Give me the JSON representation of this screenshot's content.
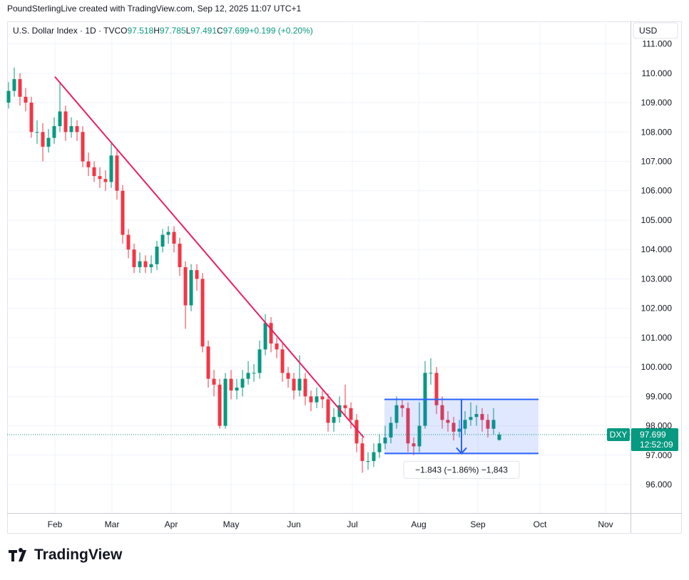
{
  "header": "PoundSterlingLive created with TradingView.com, Sep 12, 2025 11:07 UTC+1",
  "footer": {
    "logo": "TradingView"
  },
  "chart_data": {
    "type": "candlestick",
    "legend": {
      "symbol": "U.S. Dollar Index · 1D · TVC",
      "o": "O",
      "open": "97.518",
      "h": "H",
      "high": "97.785",
      "l": "L",
      "low": "97.491",
      "c": "C",
      "close": "97.699",
      "change": "+0.199 (+0.20%)"
    },
    "currency": "USD",
    "ticker": "DXY",
    "last_price": "97.699",
    "countdown": "12:52:09",
    "up_color": "#089981",
    "down_color": "#f23645",
    "x": [
      0.5,
      2.5,
      4.5,
      6.5,
      8.5,
      10.5,
      12.5,
      14.5,
      16.5,
      18.5,
      20.5,
      22.5,
      24.5,
      26.5,
      28.5,
      30.5,
      32.5,
      34.5,
      36.5,
      38.5,
      40.5,
      42.5,
      44.5,
      46.5,
      48.5,
      50.5,
      52.5,
      54.5,
      56.5,
      58.5,
      60.5,
      62.5,
      64.5,
      66.5,
      68.5,
      70.5,
      72.5,
      74.5,
      76.5,
      78.5,
      80.5,
      82.5,
      84.5,
      86.5,
      88.5,
      90.5,
      92.5,
      94.5,
      96.5,
      98.5,
      100.5,
      102.5,
      104.5,
      106.5,
      108.5,
      110.5,
      112.5,
      114.5,
      116.5,
      118.5,
      120.5,
      122.5,
      124.5,
      126.5,
      128.5,
      130.5,
      132.5,
      134.5,
      136.5,
      138.5,
      140.5,
      142.5,
      144.5,
      146.5,
      148.5,
      150.5,
      152.5,
      154.5,
      156.5,
      158.5,
      160.5,
      162.5,
      164.5,
      166.5,
      168.5,
      170.5,
      172.5
    ],
    "open": [
      109.0,
      109.4,
      109.8,
      109.2,
      109.0,
      108.0,
      108.0,
      107.5,
      107.8,
      108.2,
      108.7,
      108.0,
      108.2,
      108.0,
      107.0,
      106.8,
      106.5,
      106.4,
      106.3,
      107.2,
      106.0,
      104.5,
      104.0,
      103.4,
      103.6,
      103.4,
      103.5,
      104.1,
      104.5,
      104.6,
      104.2,
      103.4,
      102.1,
      103.3,
      103.0,
      100.7,
      99.6,
      99.4,
      98.0,
      99.6,
      99.2,
      99.3,
      99.6,
      99.8,
      99.8,
      100.6,
      101.5,
      100.8,
      100.6,
      99.8,
      99.6,
      99.2,
      99.6,
      99.0,
      98.8,
      99.0,
      98.9,
      98.1,
      98.3,
      98.7,
      98.6,
      98.2,
      97.4,
      96.8,
      96.8,
      97.1,
      97.4,
      97.6,
      98.1,
      98.7,
      98.6,
      97.4,
      97.3,
      98.0,
      99.8,
      99.8,
      98.7,
      98.2,
      98.1,
      97.8,
      97.9,
      98.2,
      98.3,
      98.4,
      98.2,
      97.9,
      97.518
    ],
    "high": [
      109.7,
      110.2,
      110.0,
      109.5,
      109.2,
      108.4,
      108.3,
      108.1,
      108.5,
      109.7,
      108.9,
      108.5,
      108.4,
      108.2,
      107.3,
      107.0,
      106.8,
      106.7,
      107.6,
      107.4,
      106.2,
      104.7,
      104.2,
      103.9,
      103.8,
      103.8,
      104.3,
      104.7,
      104.8,
      104.8,
      104.4,
      103.6,
      103.5,
      103.5,
      103.2,
      100.9,
      99.9,
      99.6,
      99.8,
      99.9,
      99.6,
      99.9,
      100.2,
      100.1,
      100.9,
      101.8,
      101.7,
      101.0,
      100.8,
      100.0,
      99.8,
      100.4,
      99.8,
      99.2,
      99.3,
      99.2,
      99.1,
      98.6,
      99.0,
      99.4,
      98.8,
      98.4,
      97.6,
      97.1,
      97.4,
      97.7,
      98.0,
      98.3,
      99.0,
      98.9,
      98.8,
      97.6,
      98.8,
      100.2,
      100.3,
      100.0,
      99.0,
      98.5,
      98.3,
      98.2,
      98.5,
      98.8,
      98.7,
      98.6,
      98.4,
      98.6,
      97.785
    ],
    "low": [
      108.8,
      109.2,
      108.9,
      108.7,
      107.8,
      107.6,
      107.0,
      107.3,
      107.6,
      108.0,
      107.7,
      107.8,
      107.7,
      106.8,
      106.5,
      106.3,
      106.1,
      106.0,
      106.1,
      105.7,
      104.2,
      103.7,
      103.2,
      103.2,
      103.2,
      103.2,
      103.3,
      103.9,
      104.2,
      103.9,
      103.1,
      101.3,
      101.9,
      102.6,
      100.5,
      99.3,
      99.0,
      97.9,
      97.9,
      98.9,
      98.9,
      99.0,
      99.4,
      99.5,
      99.6,
      100.4,
      100.5,
      100.3,
      99.5,
      99.3,
      98.9,
      99.0,
      98.7,
      98.5,
      98.6,
      98.6,
      97.8,
      97.8,
      98.1,
      98.3,
      97.9,
      97.1,
      96.4,
      96.5,
      96.6,
      96.9,
      97.2,
      97.4,
      97.9,
      98.3,
      97.1,
      97.0,
      97.1,
      97.9,
      99.4,
      98.4,
      97.9,
      97.8,
      97.5,
      97.6,
      97.7,
      98.0,
      98.0,
      97.8,
      97.6,
      97.7,
      97.491
    ],
    "close": [
      109.4,
      109.8,
      109.2,
      109.0,
      108.0,
      108.0,
      107.5,
      107.8,
      108.2,
      108.7,
      108.0,
      108.2,
      108.0,
      107.0,
      106.8,
      106.5,
      106.4,
      106.3,
      107.2,
      106.0,
      104.5,
      104.0,
      103.4,
      103.6,
      103.4,
      103.5,
      104.1,
      104.5,
      104.6,
      104.2,
      103.4,
      102.1,
      103.3,
      103.0,
      100.7,
      99.6,
      99.4,
      98.0,
      99.6,
      99.2,
      99.3,
      99.6,
      99.8,
      99.8,
      100.6,
      101.5,
      100.8,
      100.6,
      99.8,
      99.6,
      99.2,
      99.6,
      99.0,
      98.8,
      99.0,
      98.9,
      98.1,
      98.3,
      98.7,
      98.6,
      98.2,
      97.4,
      96.8,
      96.8,
      97.1,
      97.4,
      97.6,
      98.1,
      98.7,
      98.6,
      97.4,
      97.3,
      98.0,
      99.8,
      99.8,
      98.7,
      98.2,
      98.1,
      97.8,
      97.9,
      98.2,
      98.3,
      98.4,
      98.2,
      97.9,
      98.2,
      97.699
    ],
    "trendline": {
      "color": "#e91e63",
      "x": [
        16.75,
        125
      ],
      "y": [
        109.88,
        97.6
      ]
    },
    "range": {
      "color": "#2962ff",
      "x": [
        132.25,
        186.25
      ],
      "y": [
        98.9,
        97.057
      ],
      "label": "−1.843 (−1.86%) −1,843"
    },
    "xlim": [
      0,
      218.5
    ],
    "xticks": [
      {
        "value": 16.75,
        "label": "Feb"
      },
      {
        "value": 36.75,
        "label": "Mar"
      },
      {
        "value": 57.5,
        "label": "Apr"
      },
      {
        "value": 78.5,
        "label": "May"
      },
      {
        "value": 100.5,
        "label": "Jun"
      },
      {
        "value": 121,
        "label": "Jul"
      },
      {
        "value": 144.25,
        "label": "Aug"
      },
      {
        "value": 165,
        "label": "Sep"
      },
      {
        "value": 186.75,
        "label": "Oct"
      },
      {
        "value": 209.75,
        "label": "Nov"
      }
    ],
    "ylim": [
      95.03,
      111.16
    ],
    "yticks": [
      {
        "value": 96,
        "label": "96.000"
      },
      {
        "value": 97,
        "label": "97.000"
      },
      {
        "value": 98,
        "label": "98.000"
      },
      {
        "value": 99,
        "label": "99.000"
      },
      {
        "value": 100,
        "label": "100.000"
      },
      {
        "value": 101,
        "label": "101.000"
      },
      {
        "value": 102,
        "label": "102.000"
      },
      {
        "value": 103,
        "label": "103.000"
      },
      {
        "value": 104,
        "label": "104.000"
      },
      {
        "value": 105,
        "label": "105.000"
      },
      {
        "value": 106,
        "label": "106.000"
      },
      {
        "value": 107,
        "label": "107.000"
      },
      {
        "value": 108,
        "label": "108.000"
      },
      {
        "value": 109,
        "label": "109.000"
      },
      {
        "value": 110,
        "label": "110.000"
      },
      {
        "value": 111,
        "label": "111.000"
      }
    ],
    "grid": true
  }
}
